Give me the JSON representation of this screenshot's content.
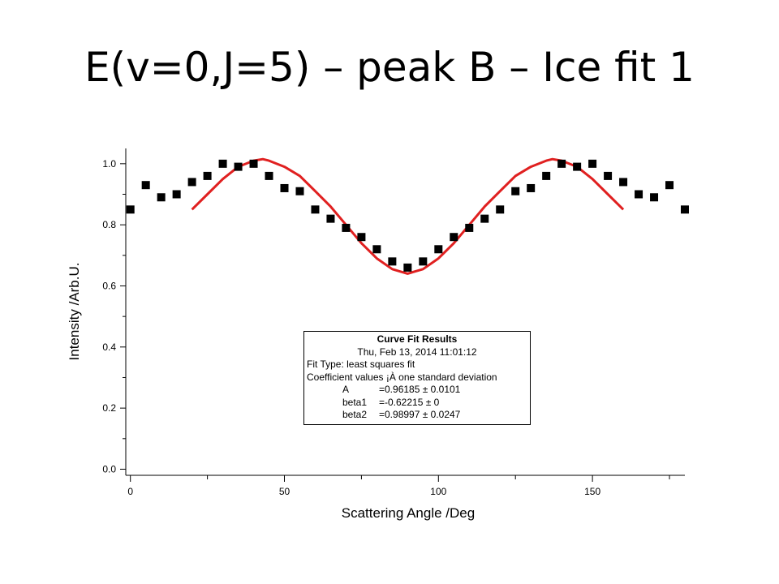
{
  "slide": {
    "title": "E(v=0,J=5) – peak B – Ice fit 1"
  },
  "chart_data": {
    "type": "scatter",
    "xlabel": "Scattering Angle /Deg",
    "ylabel": "Intensity /Arb.U.",
    "xlim": [
      -1.5,
      180
    ],
    "ylim": [
      -0.02,
      1.05
    ],
    "xticks": [
      0,
      50,
      100,
      150
    ],
    "xtick_labels": [
      "0",
      "50",
      "100",
      "150"
    ],
    "yticks": [
      0.0,
      0.2,
      0.4,
      0.6,
      0.8,
      1.0
    ],
    "ytick_labels": [
      "0.0",
      "0.2",
      "0.4",
      "0.6",
      "0.8",
      "1.0"
    ],
    "grid": false,
    "colors": {
      "points": "#000000",
      "fit": "#e02020"
    },
    "series": [
      {
        "type": "scatter",
        "x": [
          0,
          5,
          10,
          15,
          20,
          25,
          30,
          35,
          40,
          45,
          50,
          55,
          60,
          65,
          70,
          75,
          80,
          85,
          90,
          95,
          100,
          105,
          110,
          115,
          120,
          125,
          130,
          135,
          140,
          145,
          150,
          155,
          160,
          165,
          170,
          175,
          180
        ],
        "y": [
          0.85,
          0.93,
          0.89,
          0.9,
          0.94,
          0.96,
          1.0,
          0.99,
          1.0,
          0.96,
          0.92,
          0.91,
          0.85,
          0.82,
          0.79,
          0.76,
          0.72,
          0.68,
          0.66,
          0.68,
          0.72,
          0.76,
          0.79,
          0.82,
          0.85,
          0.91,
          0.92,
          0.96,
          1.0,
          0.99,
          1.0,
          0.96,
          0.94,
          0.9,
          0.89,
          0.93,
          0.85
        ]
      },
      {
        "type": "line",
        "x": [
          20,
          25,
          30,
          35,
          40,
          43,
          45,
          50,
          55,
          60,
          65,
          70,
          75,
          80,
          85,
          90,
          95,
          100,
          105,
          110,
          115,
          120,
          125,
          130,
          135,
          137,
          140,
          145,
          150,
          155,
          160
        ],
        "y": [
          0.85,
          0.9,
          0.95,
          0.99,
          1.01,
          1.015,
          1.01,
          0.99,
          0.96,
          0.91,
          0.86,
          0.8,
          0.74,
          0.69,
          0.655,
          0.64,
          0.655,
          0.69,
          0.74,
          0.8,
          0.86,
          0.91,
          0.96,
          0.99,
          1.01,
          1.015,
          1.01,
          0.99,
          0.95,
          0.9,
          0.85
        ]
      }
    ]
  },
  "fit_box": {
    "title": "Curve Fit Results",
    "date": "Thu, Feb 13, 2014 11:01:12",
    "fit_type": "Fit Type: least squares fit",
    "coef_header": "Coefficient values ¡À one standard deviation",
    "coefficients": [
      {
        "name": "A",
        "value": "=0.96185 ± 0.0101"
      },
      {
        "name": "beta1",
        "value": "=-0.62215 ± 0"
      },
      {
        "name": "beta2",
        "value": "=0.98997 ± 0.0247"
      }
    ]
  }
}
